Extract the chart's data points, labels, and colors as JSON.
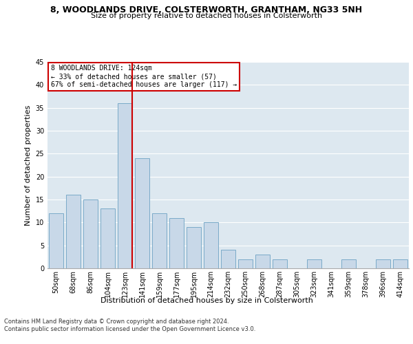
{
  "title1": "8, WOODLANDS DRIVE, COLSTERWORTH, GRANTHAM, NG33 5NH",
  "title2": "Size of property relative to detached houses in Colsterworth",
  "xlabel": "Distribution of detached houses by size in Colsterworth",
  "ylabel": "Number of detached properties",
  "categories": [
    "50sqm",
    "68sqm",
    "86sqm",
    "104sqm",
    "123sqm",
    "141sqm",
    "159sqm",
    "177sqm",
    "195sqm",
    "214sqm",
    "232sqm",
    "250sqm",
    "268sqm",
    "287sqm",
    "305sqm",
    "323sqm",
    "341sqm",
    "359sqm",
    "378sqm",
    "396sqm",
    "414sqm"
  ],
  "values": [
    12,
    16,
    15,
    13,
    36,
    24,
    12,
    11,
    9,
    10,
    4,
    2,
    3,
    2,
    0,
    2,
    0,
    2,
    0,
    2,
    2
  ],
  "bar_color": "#c8d8e8",
  "bar_edge_color": "#7aaac8",
  "highlight_index": 4,
  "highlight_line_color": "#cc0000",
  "annotation_line1": "8 WOODLANDS DRIVE: 124sqm",
  "annotation_line2": "← 33% of detached houses are smaller (57)",
  "annotation_line3": "67% of semi-detached houses are larger (117) →",
  "annotation_box_color": "#ffffff",
  "annotation_box_edge_color": "#cc0000",
  "ylim": [
    0,
    45
  ],
  "yticks": [
    0,
    5,
    10,
    15,
    20,
    25,
    30,
    35,
    40,
    45
  ],
  "background_color": "#dde8f0",
  "footer_line1": "Contains HM Land Registry data © Crown copyright and database right 2024.",
  "footer_line2": "Contains public sector information licensed under the Open Government Licence v3.0.",
  "title1_fontsize": 9,
  "title2_fontsize": 8,
  "axis_label_fontsize": 8,
  "tick_fontsize": 7,
  "footer_fontsize": 6
}
